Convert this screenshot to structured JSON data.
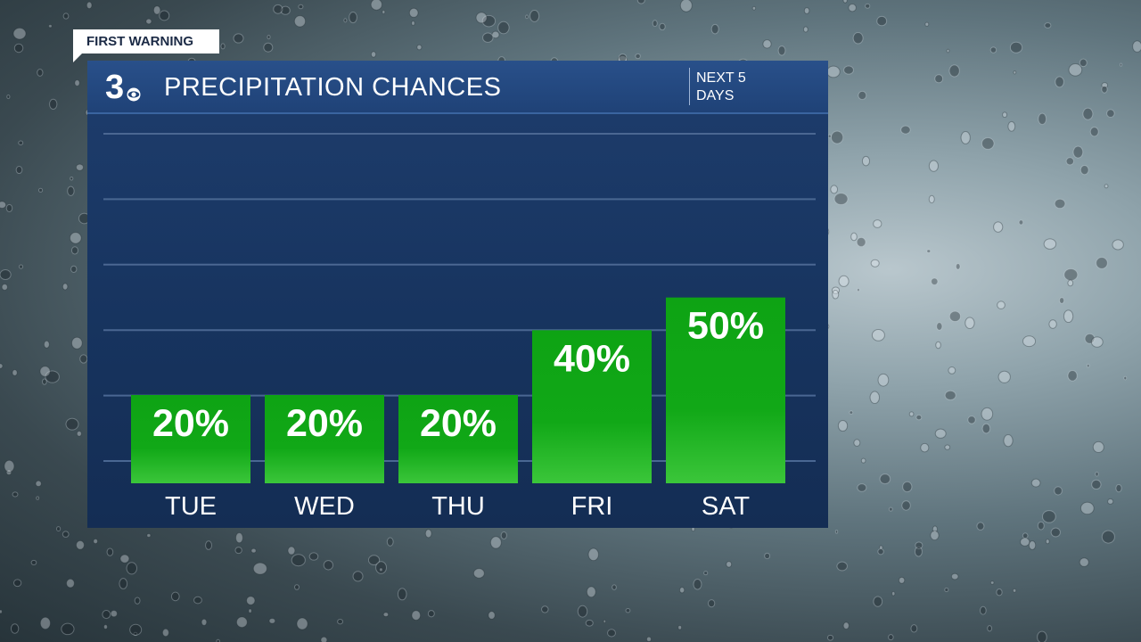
{
  "banner": {
    "label": "FIRST WARNING"
  },
  "header": {
    "logo_glyph": "3",
    "title": "PRECIPITATION CHANCES",
    "subtitle": "NEXT 5 DAYS"
  },
  "colors": {
    "panel": "#17345f",
    "header": "#23467d",
    "bar_top": "#10a51a",
    "bar_bottom": "#33c334",
    "text": "#ffffff"
  },
  "chart_data": {
    "type": "bar",
    "categories": [
      "TUE",
      "WED",
      "THU",
      "FRI",
      "SAT"
    ],
    "values": [
      20,
      20,
      20,
      40,
      50
    ],
    "value_labels": [
      "20%",
      "20%",
      "20%",
      "40%",
      "50%"
    ],
    "ylim": [
      0,
      100
    ],
    "grid": true,
    "title": "",
    "xlabel": "",
    "ylabel": ""
  }
}
